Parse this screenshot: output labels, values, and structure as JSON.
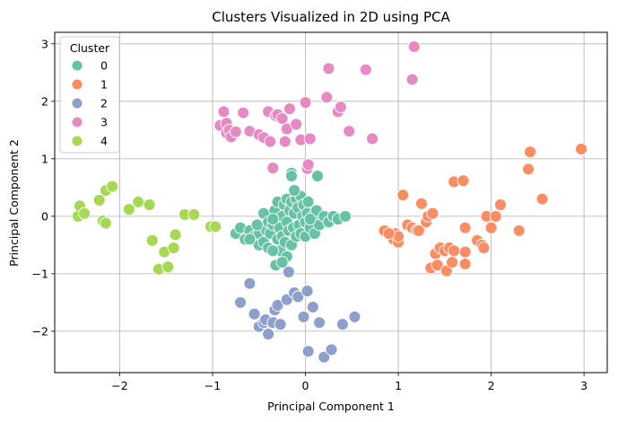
{
  "chart_data": {
    "type": "scatter",
    "title": "Clusters Visualized in 2D using PCA",
    "xlabel": "Principal Component 1",
    "ylabel": "Principal Component 2",
    "xlim": [
      -2.7,
      3.25
    ],
    "ylim": [
      -2.72,
      3.2
    ],
    "xticks": [
      -2,
      -1,
      0,
      1,
      2,
      3
    ],
    "yticks": [
      -2,
      -1,
      0,
      1,
      2,
      3
    ],
    "xtick_labels": [
      "−2",
      "−1",
      "0",
      "1",
      "2",
      "3"
    ],
    "ytick_labels": [
      "−2",
      "−1",
      "0",
      "1",
      "2",
      "3"
    ],
    "grid": true,
    "legend": {
      "title": "Cluster",
      "location": "upper-left",
      "entries": [
        "0",
        "1",
        "2",
        "3",
        "4"
      ]
    },
    "series": [
      {
        "name": "0",
        "color": "#66c2a5",
        "points": [
          [
            -0.75,
            -0.3
          ],
          [
            -0.7,
            -0.2
          ],
          [
            -0.65,
            -0.4
          ],
          [
            -0.6,
            -0.25
          ],
          [
            -0.55,
            -0.35
          ],
          [
            -0.5,
            -0.3
          ],
          [
            -0.5,
            -0.5
          ],
          [
            -0.45,
            0.05
          ],
          [
            -0.45,
            -0.45
          ],
          [
            -0.42,
            -0.25
          ],
          [
            -0.4,
            -0.1
          ],
          [
            -0.4,
            -0.55
          ],
          [
            -0.38,
            -0.3
          ],
          [
            -0.35,
            -0.15
          ],
          [
            -0.33,
            0.1
          ],
          [
            -0.3,
            -0.4
          ],
          [
            -0.3,
            0.25
          ],
          [
            -0.28,
            -0.2
          ],
          [
            -0.27,
            -0.6
          ],
          [
            -0.25,
            0.0
          ],
          [
            -0.25,
            -0.35
          ],
          [
            -0.23,
            0.2
          ],
          [
            -0.22,
            -0.45
          ],
          [
            -0.2,
            0.3
          ],
          [
            -0.2,
            -0.1
          ],
          [
            -0.2,
            -0.7
          ],
          [
            -0.18,
            -0.25
          ],
          [
            -0.17,
            0.1
          ],
          [
            -0.15,
            0.25
          ],
          [
            -0.15,
            -0.5
          ],
          [
            -0.13,
            -0.2
          ],
          [
            -0.12,
            0.05
          ],
          [
            -0.1,
            0.3
          ],
          [
            -0.1,
            -0.35
          ],
          [
            -0.08,
            0.15
          ],
          [
            -0.07,
            -0.15
          ],
          [
            -0.05,
            0.35
          ],
          [
            -0.05,
            -0.3
          ],
          [
            -0.03,
            0.0
          ],
          [
            -0.02,
            0.2
          ],
          [
            0.0,
            -0.1
          ],
          [
            0.0,
            -0.35
          ],
          [
            0.02,
            0.05
          ],
          [
            0.03,
            0.25
          ],
          [
            0.05,
            -0.2
          ],
          [
            0.08,
            0.0
          ],
          [
            0.1,
            -0.3
          ],
          [
            0.12,
            0.1
          ],
          [
            0.15,
            -0.15
          ],
          [
            0.2,
            0.0
          ],
          [
            0.25,
            -0.1
          ],
          [
            0.3,
            0.0
          ],
          [
            0.35,
            -0.05
          ],
          [
            0.43,
            0.0
          ],
          [
            -0.35,
            -0.6
          ],
          [
            -0.32,
            -0.85
          ],
          [
            -0.25,
            -0.8
          ],
          [
            -0.12,
            0.45
          ],
          [
            -0.15,
            0.75
          ],
          [
            -0.15,
            0.7
          ],
          [
            0.13,
            0.7
          ],
          [
            -0.6,
            -0.4
          ],
          [
            -0.52,
            -0.15
          ],
          [
            -0.35,
            -0.05
          ],
          [
            0.05,
            -0.05
          ]
        ]
      },
      {
        "name": "1",
        "color": "#fc8d62",
        "points": [
          [
            0.85,
            -0.25
          ],
          [
            0.95,
            -0.4
          ],
          [
            0.97,
            -0.3
          ],
          [
            1.0,
            -0.45
          ],
          [
            1.05,
            0.37
          ],
          [
            1.1,
            -0.15
          ],
          [
            1.15,
            -0.2
          ],
          [
            1.2,
            -0.25
          ],
          [
            1.22,
            -0.25
          ],
          [
            1.25,
            0.22
          ],
          [
            1.3,
            -0.1
          ],
          [
            1.32,
            0.0
          ],
          [
            1.35,
            -0.9
          ],
          [
            1.37,
            0.05
          ],
          [
            1.4,
            -0.65
          ],
          [
            1.42,
            -0.85
          ],
          [
            1.45,
            -0.55
          ],
          [
            1.5,
            -0.6
          ],
          [
            1.52,
            -0.95
          ],
          [
            1.55,
            -0.55
          ],
          [
            1.58,
            -0.8
          ],
          [
            1.6,
            -0.6
          ],
          [
            1.6,
            0.6
          ],
          [
            1.7,
            0.62
          ],
          [
            1.72,
            -0.2
          ],
          [
            1.72,
            -0.62
          ],
          [
            1.72,
            -0.83
          ],
          [
            1.85,
            -0.42
          ],
          [
            1.9,
            -0.5
          ],
          [
            1.92,
            -0.55
          ],
          [
            1.95,
            0.0
          ],
          [
            2.0,
            -0.2
          ],
          [
            2.05,
            0.0
          ],
          [
            2.1,
            0.2
          ],
          [
            2.3,
            -0.25
          ],
          [
            2.4,
            0.82
          ],
          [
            2.42,
            1.12
          ],
          [
            2.55,
            0.3
          ],
          [
            2.97,
            1.17
          ],
          [
            1.0,
            -0.35
          ],
          [
            0.9,
            -0.3
          ]
        ]
      },
      {
        "name": "2",
        "color": "#8da0cb",
        "points": [
          [
            -0.7,
            -1.5
          ],
          [
            -0.6,
            -1.17
          ],
          [
            -0.55,
            -1.7
          ],
          [
            -0.5,
            -1.92
          ],
          [
            -0.45,
            -1.85
          ],
          [
            -0.43,
            -1.8
          ],
          [
            -0.4,
            -2.05
          ],
          [
            -0.35,
            -1.85
          ],
          [
            -0.33,
            -1.63
          ],
          [
            -0.3,
            -1.55
          ],
          [
            -0.27,
            -1.88
          ],
          [
            -0.2,
            -1.45
          ],
          [
            -0.18,
            -0.97
          ],
          [
            -0.12,
            -1.33
          ],
          [
            -0.08,
            -1.4
          ],
          [
            -0.02,
            -1.75
          ],
          [
            0.02,
            -1.3
          ],
          [
            0.03,
            -2.35
          ],
          [
            0.08,
            -1.58
          ],
          [
            0.15,
            -1.85
          ],
          [
            0.2,
            -2.45
          ],
          [
            0.28,
            -2.32
          ],
          [
            0.4,
            -1.88
          ],
          [
            0.53,
            -1.75
          ]
        ]
      },
      {
        "name": "3",
        "color": "#e78ac3",
        "points": [
          [
            -0.92,
            1.58
          ],
          [
            -0.88,
            1.82
          ],
          [
            -0.85,
            1.45
          ],
          [
            -0.85,
            1.62
          ],
          [
            -0.82,
            1.5
          ],
          [
            -0.8,
            1.38
          ],
          [
            -0.75,
            1.47
          ],
          [
            -0.67,
            1.8
          ],
          [
            -0.6,
            1.48
          ],
          [
            -0.5,
            1.42
          ],
          [
            -0.45,
            1.37
          ],
          [
            -0.4,
            1.82
          ],
          [
            -0.38,
            1.3
          ],
          [
            -0.32,
            1.75
          ],
          [
            -0.3,
            1.77
          ],
          [
            -0.25,
            1.7
          ],
          [
            -0.2,
            1.52
          ],
          [
            -0.17,
            1.87
          ],
          [
            -0.35,
            0.84
          ],
          [
            -0.1,
            1.6
          ],
          [
            -0.05,
            1.33
          ],
          [
            0.0,
            1.98
          ],
          [
            0.02,
            0.83
          ],
          [
            0.03,
            0.9
          ],
          [
            0.05,
            1.35
          ],
          [
            0.23,
            2.07
          ],
          [
            0.25,
            2.57
          ],
          [
            0.35,
            1.82
          ],
          [
            0.38,
            1.9
          ],
          [
            0.47,
            1.48
          ],
          [
            0.65,
            2.55
          ],
          [
            0.72,
            1.35
          ],
          [
            1.15,
            2.38
          ],
          [
            1.17,
            2.95
          ],
          [
            -0.22,
            1.3
          ]
        ]
      },
      {
        "name": "4",
        "color": "#a6d854",
        "points": [
          [
            -2.45,
            0.0
          ],
          [
            -2.43,
            0.18
          ],
          [
            -2.38,
            0.05
          ],
          [
            -2.22,
            0.28
          ],
          [
            -2.18,
            -0.08
          ],
          [
            -2.15,
            -0.12
          ],
          [
            -2.15,
            0.45
          ],
          [
            -2.08,
            0.52
          ],
          [
            -1.9,
            0.12
          ],
          [
            -1.8,
            0.25
          ],
          [
            -1.68,
            0.2
          ],
          [
            -1.65,
            -0.42
          ],
          [
            -1.58,
            -0.92
          ],
          [
            -1.52,
            -0.62
          ],
          [
            -1.48,
            -0.88
          ],
          [
            -1.42,
            -0.55
          ],
          [
            -1.4,
            -0.32
          ],
          [
            -1.3,
            0.03
          ],
          [
            -1.2,
            0.03
          ],
          [
            -1.02,
            -0.18
          ],
          [
            -0.97,
            -0.18
          ]
        ]
      }
    ]
  }
}
